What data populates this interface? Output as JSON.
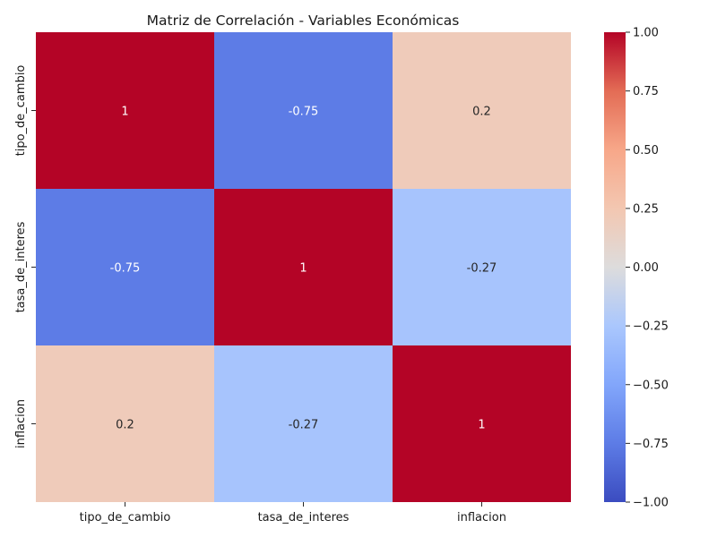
{
  "chart_data": {
    "type": "heatmap",
    "title": "Matriz de Correlación - Variables Económicas",
    "x_labels": [
      "tipo_de_cambio",
      "tasa_de_interes",
      "inflacion"
    ],
    "y_labels": [
      "tipo_de_cambio",
      "tasa_de_interes",
      "inflacion"
    ],
    "values": [
      [
        1,
        -0.75,
        0.2
      ],
      [
        -0.75,
        1,
        -0.27
      ],
      [
        0.2,
        -0.27,
        1
      ]
    ],
    "annotations": [
      [
        "1",
        "-0.75",
        "0.2"
      ],
      [
        "-0.75",
        "1",
        "-0.27"
      ],
      [
        "0.2",
        "-0.27",
        "1"
      ]
    ],
    "colormap": "coolwarm",
    "vmin": -1,
    "vmax": 1,
    "colorbar_ticks": [
      -1.0,
      -0.75,
      -0.5,
      -0.25,
      0.0,
      0.25,
      0.5,
      0.75,
      1.0
    ],
    "colorbar_tick_labels": [
      "−1.00",
      "−0.75",
      "−0.50",
      "−0.25",
      "0.00",
      "0.25",
      "0.50",
      "0.75",
      "1.00"
    ]
  }
}
